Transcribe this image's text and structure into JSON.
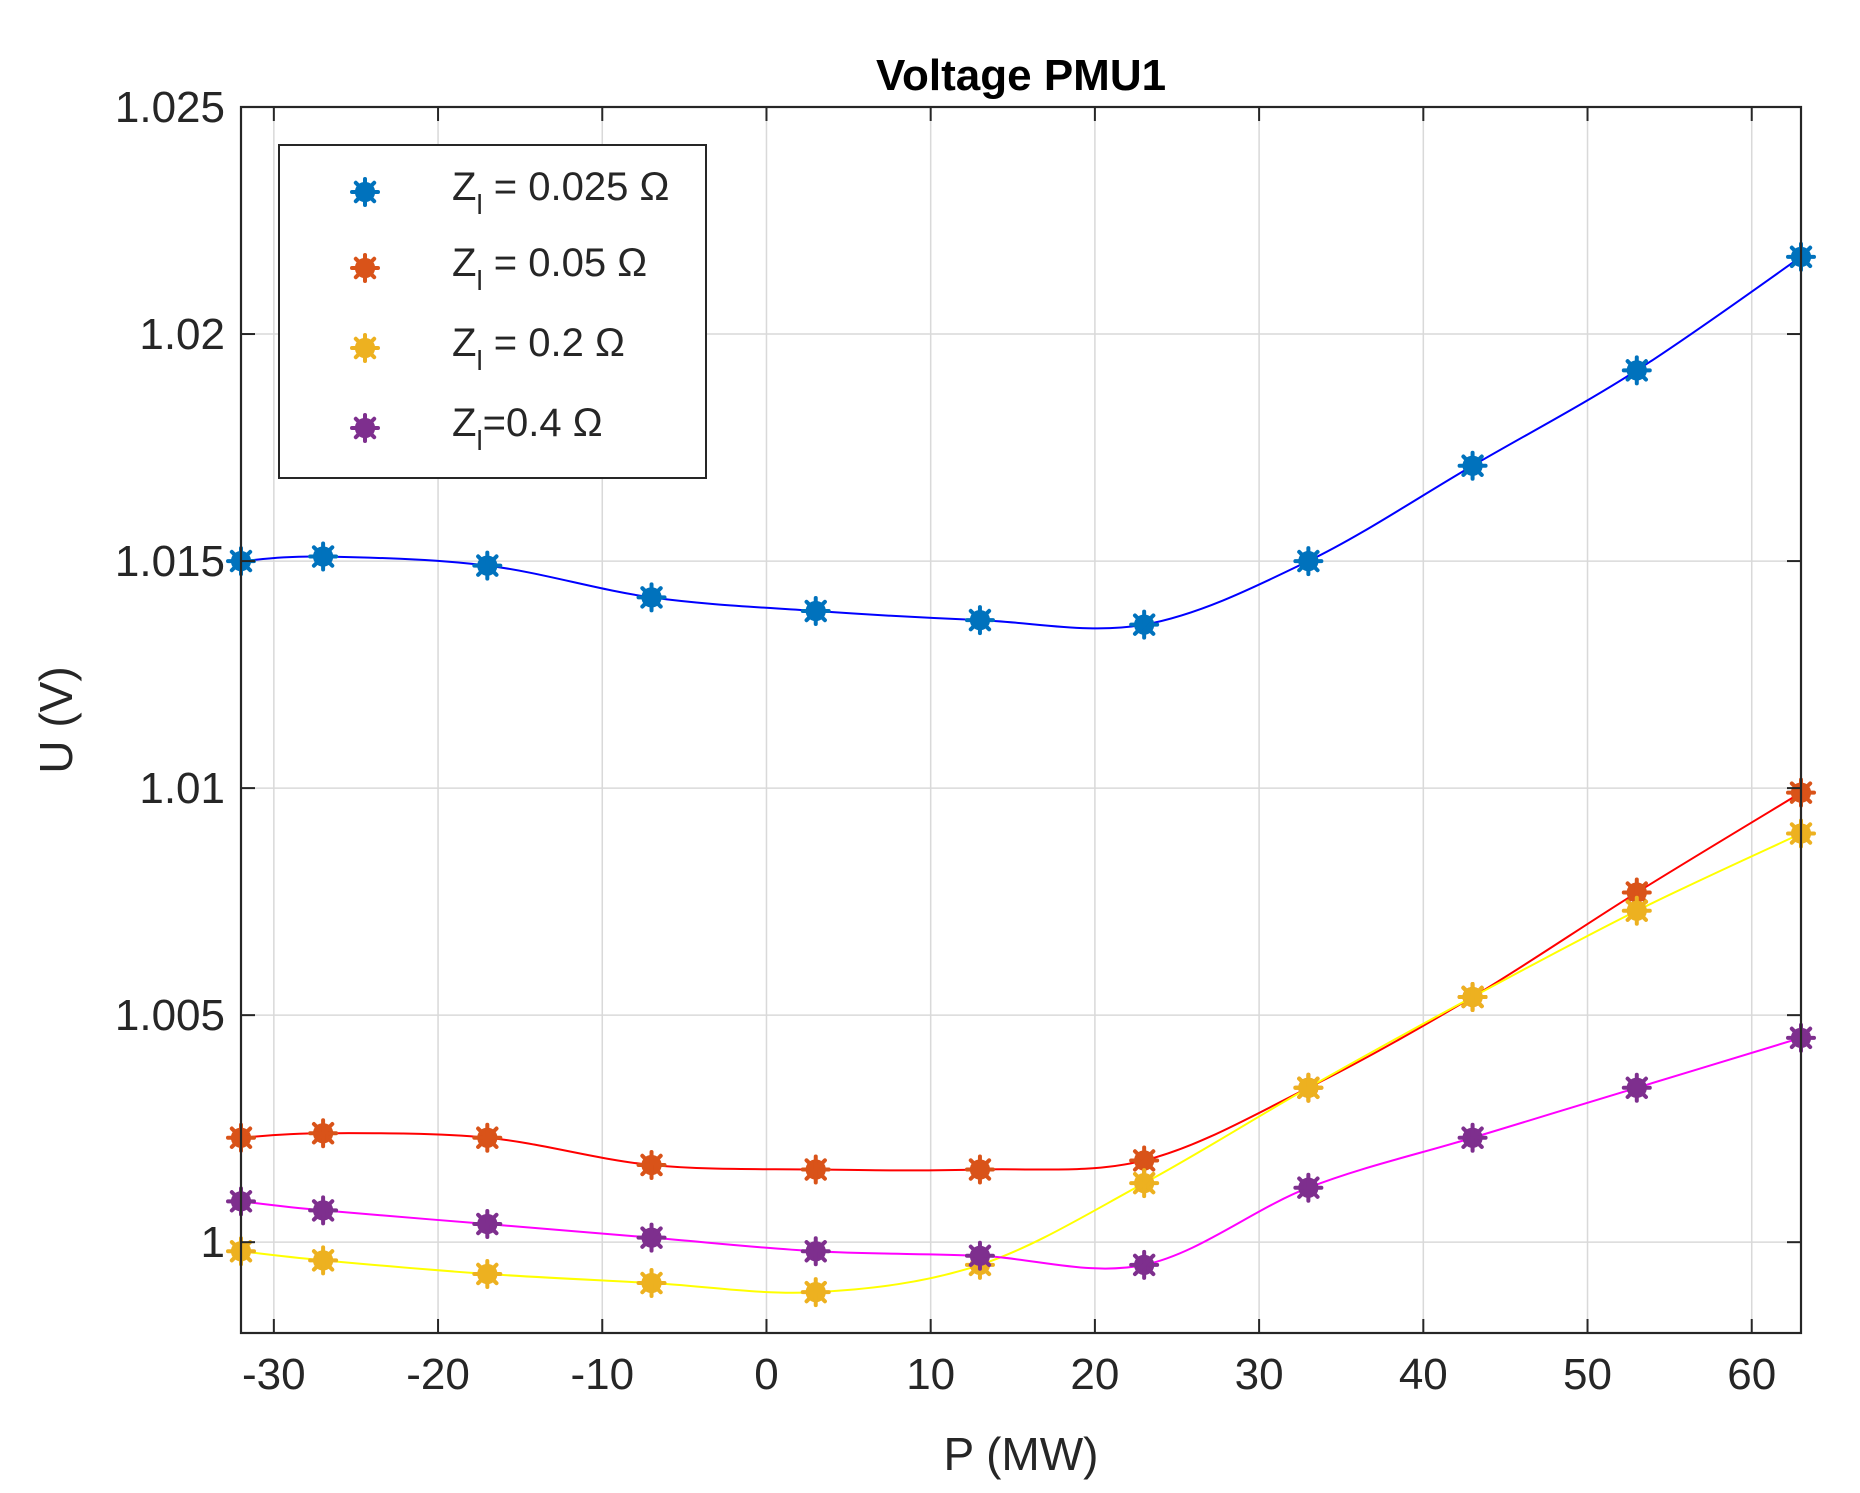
{
  "chart_data": {
    "type": "scatter",
    "title": "Voltage PMU1",
    "xlabel": "P (MW)",
    "ylabel": "U (V)",
    "xlim": [
      -32,
      63
    ],
    "ylim": [
      0.998,
      1.025
    ],
    "xticks": [
      -30,
      -20,
      -10,
      0,
      10,
      20,
      30,
      40,
      50,
      60
    ],
    "xtick_labels": [
      "-30",
      "-20",
      "-10",
      "0",
      "10",
      "20",
      "30",
      "40",
      "50",
      "60"
    ],
    "yticks": [
      1.0,
      1.005,
      1.01,
      1.015,
      1.02,
      1.025
    ],
    "ytick_labels": [
      "1",
      "1.005",
      "1.01",
      "1.015",
      "1.02",
      "1.025"
    ],
    "grid": true,
    "legend_position": "top-left",
    "x": [
      -32,
      -27,
      -17,
      -7,
      3,
      13,
      23,
      33,
      43,
      53,
      63
    ],
    "series": [
      {
        "name": "Z = 0.025 Ω",
        "legend_main": "Z",
        "legend_sub": "l",
        "legend_rest": " = 0.025 Ω",
        "marker_color": "#0072BD",
        "line_color": "#0000FF",
        "values": [
          1.015,
          1.0151,
          1.0149,
          1.0142,
          1.0139,
          1.0137,
          1.0136,
          1.015,
          1.0171,
          1.0192,
          1.0217
        ]
      },
      {
        "name": "Z = 0.05 Ω",
        "legend_main": "Z",
        "legend_sub": "l",
        "legend_rest": " = 0.05 Ω",
        "marker_color": "#D95319",
        "line_color": "#FF0000",
        "values": [
          1.0023,
          1.0024,
          1.0023,
          1.0017,
          1.0016,
          1.0016,
          1.0018,
          1.0034,
          1.0054,
          1.0077,
          1.0099
        ]
      },
      {
        "name": "Z = 0.2 Ω",
        "legend_main": "Z",
        "legend_sub": "l",
        "legend_rest": " = 0.2 Ω",
        "marker_color": "#EDB120",
        "line_color": "#FFFF00",
        "values": [
          0.9998,
          0.9996,
          0.9993,
          0.9991,
          0.9989,
          0.9995,
          1.0013,
          1.0034,
          1.0054,
          1.0073,
          1.009
        ]
      },
      {
        "name": "Z=0.4 Ω",
        "legend_main": "Z",
        "legend_sub": "l",
        "legend_rest": "=0.4 Ω",
        "marker_color": "#7E2F8E",
        "line_color": "#FF00FF",
        "values": [
          1.0009,
          1.0007,
          1.0004,
          1.0001,
          0.9998,
          0.9997,
          0.9995,
          1.0012,
          1.0023,
          1.0034,
          1.0045
        ]
      }
    ]
  }
}
